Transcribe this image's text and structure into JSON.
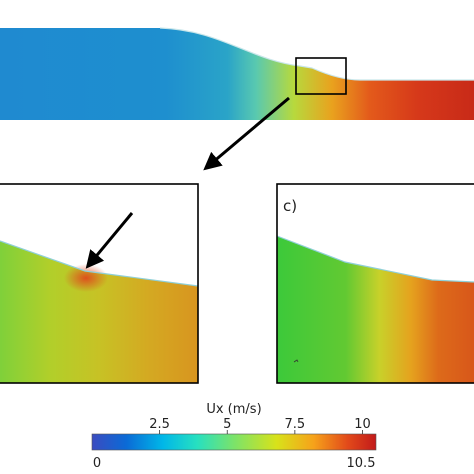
{
  "panel_c_label": "c)",
  "colorbar": {
    "title": "Ux (m/s)",
    "min_label": "0",
    "max_label": "10.5",
    "tick_labels": [
      "2.5",
      "5",
      "7.5",
      "10"
    ],
    "tick_values": [
      2.5,
      5,
      7.5,
      10
    ],
    "range": [
      0,
      10.5
    ],
    "colors": [
      "#3b4cc0",
      "#0b6ad6",
      "#00b7e8",
      "#27e0c0",
      "#7be36a",
      "#d8e21a",
      "#f6a21a",
      "#e24a1a",
      "#c21a1a"
    ]
  },
  "field_colors": {
    "top": [
      "#1f8ad0",
      "#1e8fcf",
      "#2aa4c8",
      "#59c9b0",
      "#b7d93d",
      "#e9a21e",
      "#e35a1b",
      "#d6391a",
      "#c82a18"
    ],
    "zoom_b": [
      "#7fd03a",
      "#b1cf2a",
      "#c7c225",
      "#d4a922",
      "#d8951f"
    ],
    "zoom_c": [
      "#3cc93a",
      "#62c932",
      "#c8d12a",
      "#e5a21e",
      "#dd6a1a",
      "#d8571a"
    ]
  }
}
